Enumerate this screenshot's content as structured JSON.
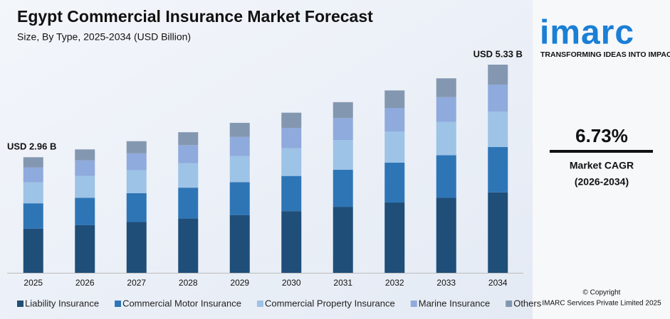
{
  "chart_data": {
    "type": "bar",
    "stacked": true,
    "title": "Egypt Commercial Insurance Market Forecast",
    "subtitle": "Size, By Type, 2025-2034 (USD Billion)",
    "categories": [
      "2025",
      "2026",
      "2027",
      "2028",
      "2029",
      "2030",
      "2031",
      "2032",
      "2033",
      "2034"
    ],
    "series": [
      {
        "name": "Liability Insurance",
        "color": "#1f4e79",
        "values": [
          1.13,
          1.22,
          1.3,
          1.39,
          1.48,
          1.58,
          1.69,
          1.8,
          1.92,
          2.06
        ]
      },
      {
        "name": "Commercial Motor Insurance",
        "color": "#2e75b6",
        "values": [
          0.65,
          0.7,
          0.74,
          0.79,
          0.84,
          0.9,
          0.95,
          1.02,
          1.09,
          1.16
        ]
      },
      {
        "name": "Commercial Property Insurance",
        "color": "#9dc3e6",
        "values": [
          0.54,
          0.56,
          0.59,
          0.63,
          0.67,
          0.71,
          0.76,
          0.8,
          0.85,
          0.91
        ]
      },
      {
        "name": "Marine Insurance",
        "color": "#8faadc",
        "values": [
          0.38,
          0.4,
          0.43,
          0.46,
          0.49,
          0.52,
          0.56,
          0.6,
          0.64,
          0.69
        ]
      },
      {
        "name": "Others",
        "color": "#8497b0",
        "values": [
          0.26,
          0.28,
          0.31,
          0.33,
          0.36,
          0.39,
          0.41,
          0.45,
          0.48,
          0.51
        ]
      }
    ],
    "annotations": [
      {
        "text": "USD 2.96 B",
        "category": "2025",
        "value": 2.96
      },
      {
        "text": "USD 5.33 B",
        "category": "2034",
        "value": 5.33
      }
    ],
    "legend": "bottom"
  },
  "sidebar": {
    "logo": "imarc",
    "tagline": "TRANSFORMING IDEAS INTO IMPACT",
    "cagr": "6.73%",
    "cagr_label": "Market CAGR",
    "cagr_period": "(2026-2034)",
    "copyright": "© Copyright",
    "company": "IMARC Services Private Limited 2025"
  }
}
